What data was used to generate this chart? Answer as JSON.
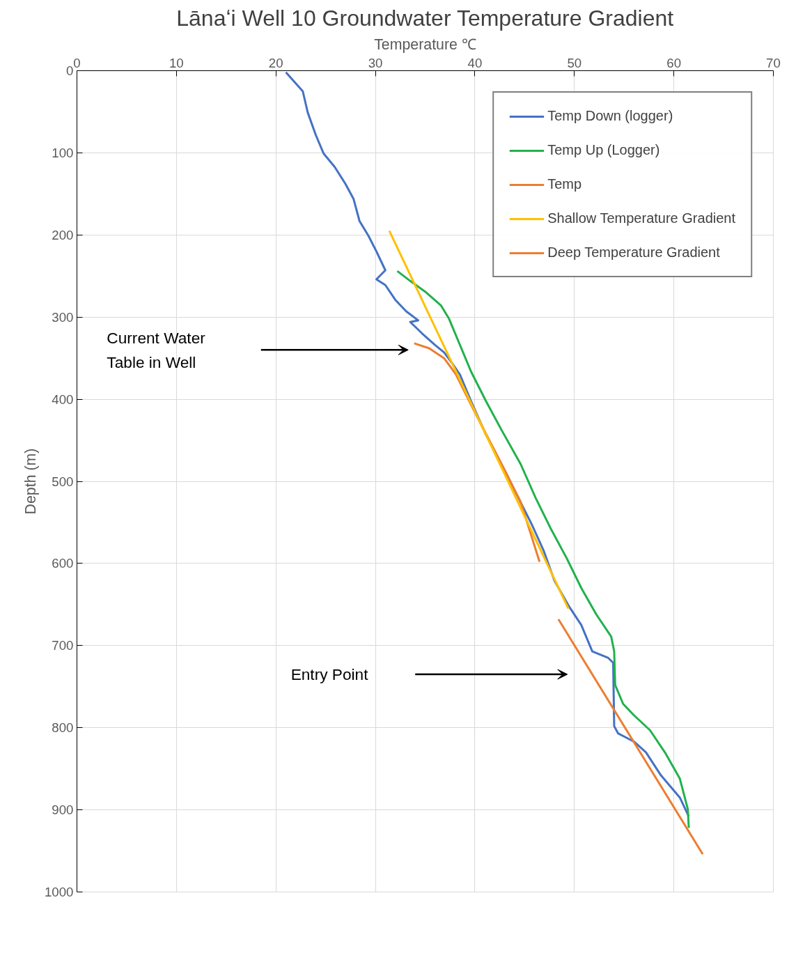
{
  "chart_data": {
    "type": "line",
    "title": "Lānaʻi Well 10 Groundwater Temperature Gradient",
    "xlabel": "Temperature ℃",
    "ylabel": "Depth (m)",
    "xlim": [
      0,
      70
    ],
    "xticks": [
      0,
      10,
      20,
      30,
      40,
      50,
      60,
      70
    ],
    "ylim": [
      1000,
      0
    ],
    "yticks": [
      0,
      100,
      200,
      300,
      400,
      500,
      600,
      700,
      800,
      900,
      1000
    ],
    "grid": true,
    "legend": "top right",
    "series": [
      {
        "name": "Temp Down (logger)",
        "color": "#4472c4",
        "x": [
          21.0,
          22.7,
          23.2,
          24.0,
          24.8,
          25.9,
          27.0,
          27.8,
          28.4,
          29.3,
          30.1,
          31.0,
          30.1,
          31.0,
          32.0,
          33.1,
          34.3,
          33.5,
          34.7,
          36.0,
          36.9,
          37.7,
          38.5,
          39.6,
          41.1,
          43.1,
          44.2,
          45.7,
          46.9,
          48.0,
          49.5,
          50.7,
          51.8,
          53.4,
          53.9,
          54.0,
          54.4,
          56.0,
          57.2,
          58.7,
          60.6,
          61.5
        ],
        "values": [
          2,
          25,
          51,
          78,
          101,
          117,
          138,
          156,
          183,
          201,
          220,
          243,
          254,
          261,
          279,
          293,
          304,
          306,
          320,
          334,
          343,
          356,
          370,
          402,
          443,
          489,
          516,
          552,
          584,
          621,
          653,
          675,
          707,
          715,
          721,
          798,
          807,
          817,
          830,
          858,
          885,
          908
        ]
      },
      {
        "name": "Temp Up (Logger)",
        "color": "#22b14c",
        "x": [
          32.2,
          33.5,
          35.1,
          36.6,
          37.4,
          38.5,
          39.6,
          41.1,
          42.7,
          44.6,
          46.1,
          47.6,
          49.2,
          50.7,
          52.2,
          53.7,
          54.0,
          54.1,
          54.9,
          56.0,
          57.6,
          59.1,
          60.6,
          61.4,
          61.5
        ],
        "values": [
          244,
          256,
          270,
          286,
          302,
          334,
          366,
          402,
          438,
          479,
          520,
          557,
          593,
          630,
          662,
          689,
          707,
          748,
          771,
          785,
          803,
          830,
          862,
          899,
          922
        ]
      },
      {
        "name": "Temp",
        "color": "#ed7d31",
        "x": [
          33.9,
          35.4,
          36.9,
          38.1,
          40.0,
          42.3,
          44.6,
          46.5
        ],
        "values": [
          332,
          338,
          350,
          370,
          416,
          470,
          525,
          598
        ]
      },
      {
        "name": "Shallow Temperature Gradient",
        "color": "#ffc000",
        "x": [
          31.4,
          49.4
        ],
        "values": [
          195,
          655
        ]
      },
      {
        "name": "Deep Temperature Gradient",
        "color": "#ed7d31",
        "x": [
          48.4,
          62.9
        ],
        "values": [
          668,
          954
        ]
      }
    ],
    "annotations": [
      "Current Water\nTable in Well",
      "Entry Point"
    ]
  }
}
